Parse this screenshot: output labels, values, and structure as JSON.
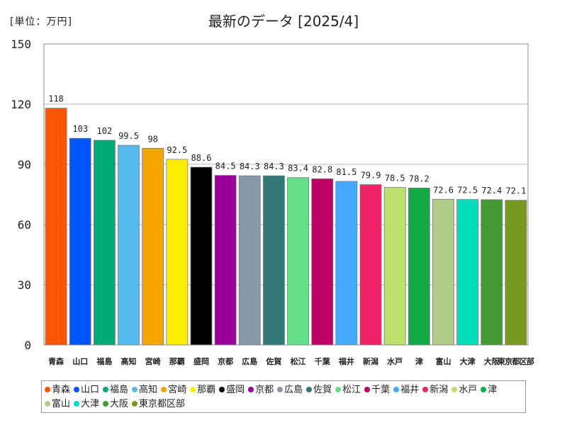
{
  "unit_label": "[単位：万円]",
  "chart_data": {
    "type": "bar",
    "title": "最新のデータ [2025/4]",
    "xlabel": "",
    "ylabel": "",
    "ylim": [
      0,
      150
    ],
    "yticks": [
      0,
      30,
      60,
      90,
      120,
      150
    ],
    "grid": true,
    "legend_position": "bottom",
    "categories": [
      "青森",
      "山口",
      "福島",
      "高知",
      "宮崎",
      "那覇",
      "盛岡",
      "京都",
      "広島",
      "佐賀",
      "松江",
      "千葉",
      "福井",
      "新潟",
      "水戸",
      "津",
      "富山",
      "大津",
      "大阪",
      "東京都区部"
    ],
    "values": [
      118,
      103,
      102,
      99.5,
      98,
      92.5,
      88.6,
      84.5,
      84.3,
      84.3,
      83.4,
      82.8,
      81.5,
      79.9,
      78.5,
      78.2,
      72.6,
      72.5,
      72.4,
      72.1
    ],
    "data_labels": [
      "118",
      "103",
      "102",
      "99.5",
      "98",
      "92.5",
      "88.6",
      "84.5",
      "84.3",
      "84.3",
      "83.4",
      "82.8",
      "81.5",
      "79.9",
      "78.5",
      "78.2",
      "72.6",
      "72.5",
      "72.4",
      "72.1"
    ],
    "colors": [
      "#ff5500",
      "#0055ff",
      "#00aa77",
      "#55bbee",
      "#f5a500",
      "#ffee00",
      "#000000",
      "#990099",
      "#8899aa",
      "#337777",
      "#66dd88",
      "#bb0066",
      "#44aaff",
      "#ee2266",
      "#bbe06e",
      "#11aa44",
      "#b0cc88",
      "#00ddbb",
      "#449933",
      "#779922"
    ]
  }
}
